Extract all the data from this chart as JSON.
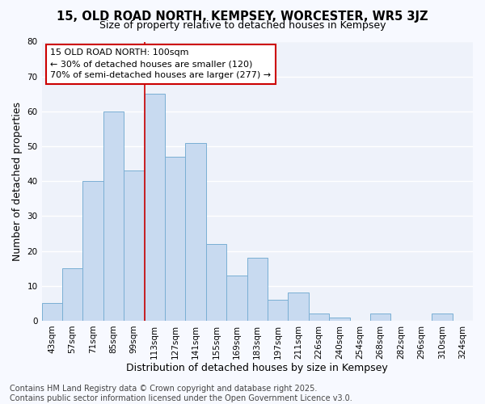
{
  "title": "15, OLD ROAD NORTH, KEMPSEY, WORCESTER, WR5 3JZ",
  "subtitle": "Size of property relative to detached houses in Kempsey",
  "xlabel": "Distribution of detached houses by size in Kempsey",
  "ylabel": "Number of detached properties",
  "bar_labels": [
    "43sqm",
    "57sqm",
    "71sqm",
    "85sqm",
    "99sqm",
    "113sqm",
    "127sqm",
    "141sqm",
    "155sqm",
    "169sqm",
    "183sqm",
    "197sqm",
    "211sqm",
    "226sqm",
    "240sqm",
    "254sqm",
    "268sqm",
    "282sqm",
    "296sqm",
    "310sqm",
    "324sqm"
  ],
  "bar_values": [
    5,
    15,
    40,
    60,
    43,
    65,
    47,
    51,
    22,
    13,
    18,
    6,
    8,
    2,
    1,
    0,
    2,
    0,
    0,
    2,
    0
  ],
  "bar_color": "#c8daf0",
  "bar_edge_color": "#7aafd4",
  "vline_x_index": 4,
  "vline_color": "#cc0000",
  "annotation_text": "15 OLD ROAD NORTH: 100sqm\n← 30% of detached houses are smaller (120)\n70% of semi-detached houses are larger (277) →",
  "annotation_box_facecolor": "#ffffff",
  "annotation_box_edgecolor": "#cc0000",
  "ylim": [
    0,
    80
  ],
  "yticks": [
    0,
    10,
    20,
    30,
    40,
    50,
    60,
    70,
    80
  ],
  "footer_text": "Contains HM Land Registry data © Crown copyright and database right 2025.\nContains public sector information licensed under the Open Government Licence v3.0.",
  "bg_color": "#f7f9ff",
  "plot_bg_color": "#eef2fa",
  "grid_color": "#ffffff",
  "title_fontsize": 10.5,
  "subtitle_fontsize": 9,
  "axis_label_fontsize": 9,
  "tick_fontsize": 7.5,
  "annotation_fontsize": 8,
  "footer_fontsize": 7
}
